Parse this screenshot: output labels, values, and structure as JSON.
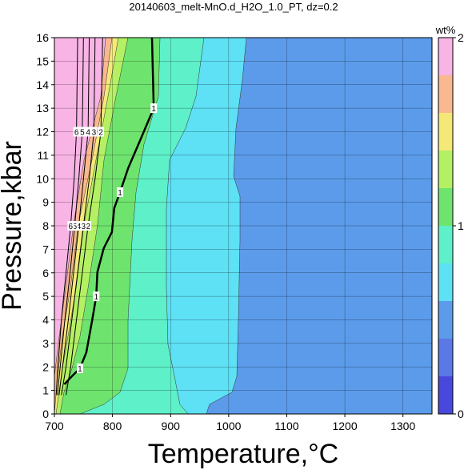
{
  "chart_data": {
    "type": "contour",
    "title": "20140603_melt-MnO.d_H2O_1.0_PT, dz=0.2",
    "x_label": "Temperature,°C",
    "y_label": "Pressure,kbar",
    "xlim": [
      700,
      1350
    ],
    "ylim": [
      0,
      16
    ],
    "xticks": [
      700,
      800,
      900,
      1000,
      1100,
      1200,
      1300
    ],
    "yticks": [
      0,
      1,
      2,
      3,
      4,
      5,
      6,
      7,
      8,
      9,
      10,
      11,
      12,
      13,
      14,
      15,
      16
    ],
    "grid": true,
    "colorbar": {
      "label": "wt%",
      "levels": [
        0,
        0.2,
        0.4,
        0.6,
        0.8,
        1.0,
        1.2,
        1.4,
        1.6,
        1.8,
        2.0
      ],
      "colors": [
        "#4848dc",
        "#5a78e6",
        "#5b9bea",
        "#5ee0f5",
        "#5ef0c8",
        "#6ee46e",
        "#b4f064",
        "#f4e878",
        "#f8b890",
        "#f8b4e4"
      ],
      "ticks": [
        0,
        1,
        2
      ]
    },
    "background_level": 0.4,
    "filled_contours": [
      {
        "level": 0.6,
        "x": [
          1030.5,
          1023.6,
          1012.6,
          1008.5,
          1019.5,
          1019.5,
          1016.7,
          1014,
          1005.7,
          967,
          961.6
        ],
        "y": [
          16,
          14.2,
          12.15,
          10.1,
          9.26,
          7.39,
          3.98,
          1.6,
          0.92,
          0.41,
          0
        ]
      },
      {
        "level": 0.8,
        "x": [
          957.5,
          943.7,
          925.8,
          898.3,
          892.8,
          892.8,
          895.5,
          909.3,
          916,
          930
        ],
        "y": [
          16,
          13.5,
          12.15,
          10.8,
          8.75,
          5.34,
          2.96,
          1.26,
          0.41,
          0
        ]
      },
      {
        "level": 1.0,
        "x": [
          881.8,
          879,
          854.2,
          840.5,
          833.6,
          826.7,
          826.7,
          812.9,
          785.4,
          744
        ],
        "y": [
          16,
          13.5,
          11.47,
          9.43,
          7.39,
          3.98,
          1.94,
          0.92,
          0.41,
          0
        ]
      },
      {
        "level": 1.2,
        "x": [
          826.7,
          806,
          785.4,
          774.4,
          757.8,
          744,
          730.3,
          716.5,
          709.6
        ],
        "y": [
          16,
          13.5,
          10.8,
          8.07,
          5.34,
          3.3,
          1.94,
          0.92,
          0
        ]
      },
      {
        "level": 1.4,
        "x": [
          810.2,
          792.3,
          771.6,
          751,
          737.2,
          723.4,
          713.8,
          702.8
        ],
        "y": [
          16,
          13.5,
          10.8,
          8.07,
          5.34,
          3.3,
          1.94,
          0
        ]
      },
      {
        "level": 1.6,
        "x": [
          799.2,
          785.4,
          764.7,
          741.3,
          727.5,
          713.8,
          705.5,
          700
        ],
        "y": [
          16,
          13.5,
          10.8,
          8.07,
          5.34,
          3.3,
          1.6,
          0
        ]
      },
      {
        "level": 1.8,
        "x": [
          788.1,
          779.9,
          751,
          733,
          719.3,
          708.3,
          700
        ],
        "y": [
          16,
          13.5,
          10.8,
          8.07,
          5.34,
          3.3,
          1.6
        ]
      }
    ],
    "contour_lines": [
      {
        "level": 1,
        "x": [
          868,
          871,
          847,
          827,
          813,
          803,
          799,
          785,
          774,
          772,
          765,
          755,
          744,
          730,
          717
        ],
        "y": [
          16,
          13,
          11.6,
          10.45,
          9.43,
          8.75,
          7.73,
          7.05,
          6.03,
          5,
          3.98,
          2.62,
          1.94,
          1.6,
          1.26
        ]
      },
      {
        "level": 2,
        "x": [
          783,
          780,
          770,
          758,
          748,
          738,
          728,
          720
        ],
        "y": [
          16,
          12,
          10,
          8,
          6,
          4,
          2,
          0.8
        ]
      },
      {
        "level": 3,
        "x": [
          770,
          768,
          760,
          750,
          740,
          730,
          720,
          712
        ],
        "y": [
          16,
          12,
          10,
          8,
          6,
          4,
          2,
          0.8
        ]
      },
      {
        "level": 4,
        "x": [
          760,
          758,
          750,
          742,
          733,
          724,
          714,
          708
        ],
        "y": [
          16,
          12,
          10,
          8,
          6,
          4,
          2,
          0.8
        ]
      },
      {
        "level": 5,
        "x": [
          750,
          748,
          742,
          735,
          727,
          718,
          710,
          705
        ],
        "y": [
          16,
          12,
          10,
          8,
          6,
          4,
          2,
          0.8
        ]
      },
      {
        "level": 6,
        "x": [
          740,
          738,
          734,
          728,
          720,
          712,
          706,
          703
        ],
        "y": [
          16,
          12,
          10,
          8,
          6,
          4,
          2,
          0.8
        ]
      }
    ]
  }
}
